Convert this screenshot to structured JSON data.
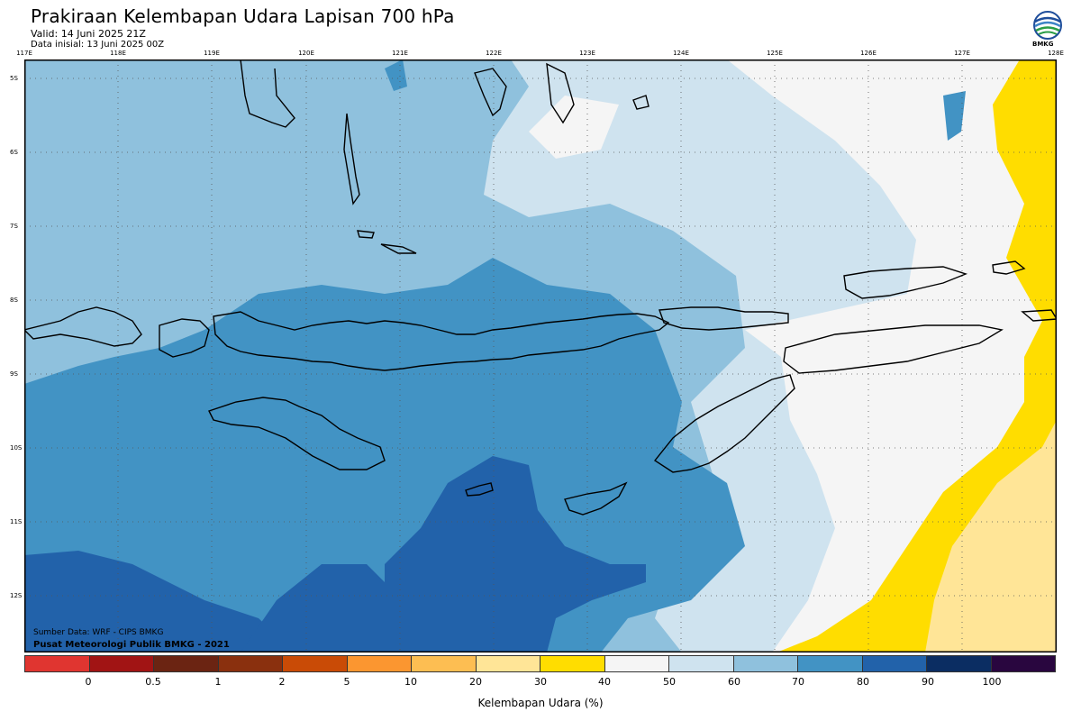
{
  "header": {
    "title": "Prakiraan Kelembapan Udara Lapisan 700 hPa",
    "valid": "Valid: 14 Juni 2025 21Z",
    "init": "Data inisial: 13 Juni 2025 00Z",
    "logo_text": "BMKG"
  },
  "map": {
    "lon_labels": [
      "117E",
      "118E",
      "119E",
      "120E",
      "121E",
      "122E",
      "123E",
      "124E",
      "125E",
      "126E",
      "127E",
      "128E"
    ],
    "lat_labels": [
      "5S",
      "6S",
      "7S",
      "8S",
      "9S",
      "10S",
      "11S",
      "12S"
    ],
    "colors": {
      "c40_50": "#f5f5f5",
      "c50_60": "#cfe3ef",
      "c60_70": "#8fc1dd",
      "c70_80": "#4293c4",
      "c80_90": "#2262aa",
      "c30_40": "#ffdd00",
      "c20_30": "#ffe597",
      "coast": "#000000"
    },
    "source": "Sumber Data: WRF - CIPS BMKG",
    "producer": "Pusat Meteorologi Publik BMKG - 2021"
  },
  "colorbar": {
    "colors": [
      "#e03530",
      "#a11414",
      "#6b2412",
      "#8a300e",
      "#c94b06",
      "#fb9630",
      "#fdbe52",
      "#ffe597",
      "#ffdd00",
      "#f5f5f5",
      "#cfe3ef",
      "#8fc1dd",
      "#4293c4",
      "#2262aa",
      "#0b2d62",
      "#29063f"
    ],
    "labels": [
      "0",
      "0.5",
      "1",
      "2",
      "5",
      "10",
      "20",
      "30",
      "40",
      "50",
      "60",
      "70",
      "80",
      "90",
      "100"
    ],
    "title": "Kelembapan Udara (%)"
  }
}
